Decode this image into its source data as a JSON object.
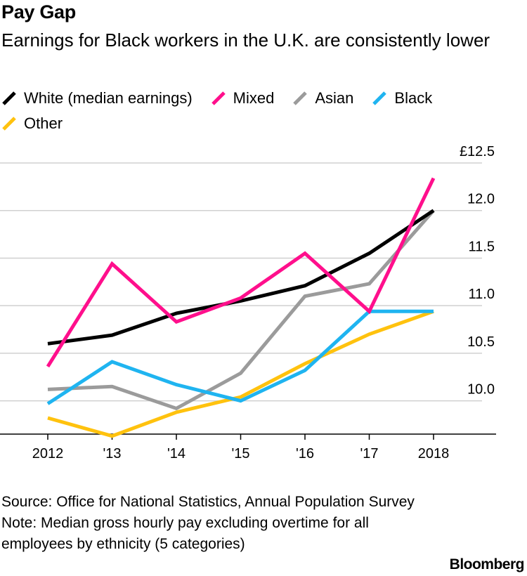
{
  "header": {
    "title": "Pay Gap",
    "subtitle": "Earnings for Black workers in the U.K. are consistently lower"
  },
  "legend": [
    {
      "label": "White (median earnings)",
      "color": "#000000"
    },
    {
      "label": "Mixed",
      "color": "#ff0f8c"
    },
    {
      "label": "Asian",
      "color": "#9b9b9b"
    },
    {
      "label": "Black",
      "color": "#1fb4f0"
    },
    {
      "label": "Other",
      "color": "#ffc20e"
    }
  ],
  "chart_data": {
    "type": "line",
    "title": "Pay Gap",
    "xlabel": "",
    "ylabel": "",
    "categories": [
      "2012",
      "'13",
      "'14",
      "'15",
      "'16",
      "'17",
      "2018"
    ],
    "y_tick_labels": [
      "£12.5",
      "12.0",
      "11.5",
      "11.0",
      "10.5",
      "10.0"
    ],
    "y_ticks": [
      12.5,
      12.0,
      11.5,
      11.0,
      10.5,
      10.0
    ],
    "ylim": [
      9.65,
      12.5
    ],
    "grid": true,
    "axis_side": "right",
    "series": [
      {
        "name": "White (median earnings)",
        "color": "#000000",
        "values": [
          10.6,
          10.69,
          10.92,
          11.05,
          11.21,
          11.55,
          12.0
        ]
      },
      {
        "name": "Mixed",
        "color": "#ff0f8c",
        "values": [
          10.36,
          11.44,
          10.83,
          11.08,
          11.55,
          10.94,
          12.34
        ]
      },
      {
        "name": "Asian",
        "color": "#9b9b9b",
        "values": [
          10.12,
          10.15,
          9.92,
          10.29,
          11.1,
          11.23,
          12.0
        ]
      },
      {
        "name": "Black",
        "color": "#1fb4f0",
        "values": [
          9.97,
          10.41,
          10.17,
          10.0,
          10.32,
          10.94,
          10.94
        ]
      },
      {
        "name": "Other",
        "color": "#ffc20e",
        "values": [
          9.82,
          9.63,
          9.88,
          10.04,
          10.39,
          10.7,
          10.94
        ]
      }
    ]
  },
  "footer": {
    "source": "Source: Office for National Statistics, Annual Population Survey",
    "note": "Note: Median gross hourly pay excluding overtime for all employees by ethnicity (5 categories)",
    "brand": "Bloomberg"
  }
}
